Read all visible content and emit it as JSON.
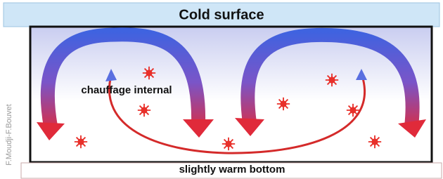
{
  "header": {
    "title": "Cold surface"
  },
  "labels": {
    "internal": "chauffage internal",
    "bottom": "slightly warm bottom"
  },
  "credit": "F.Moudji-F.Bouvet"
}
